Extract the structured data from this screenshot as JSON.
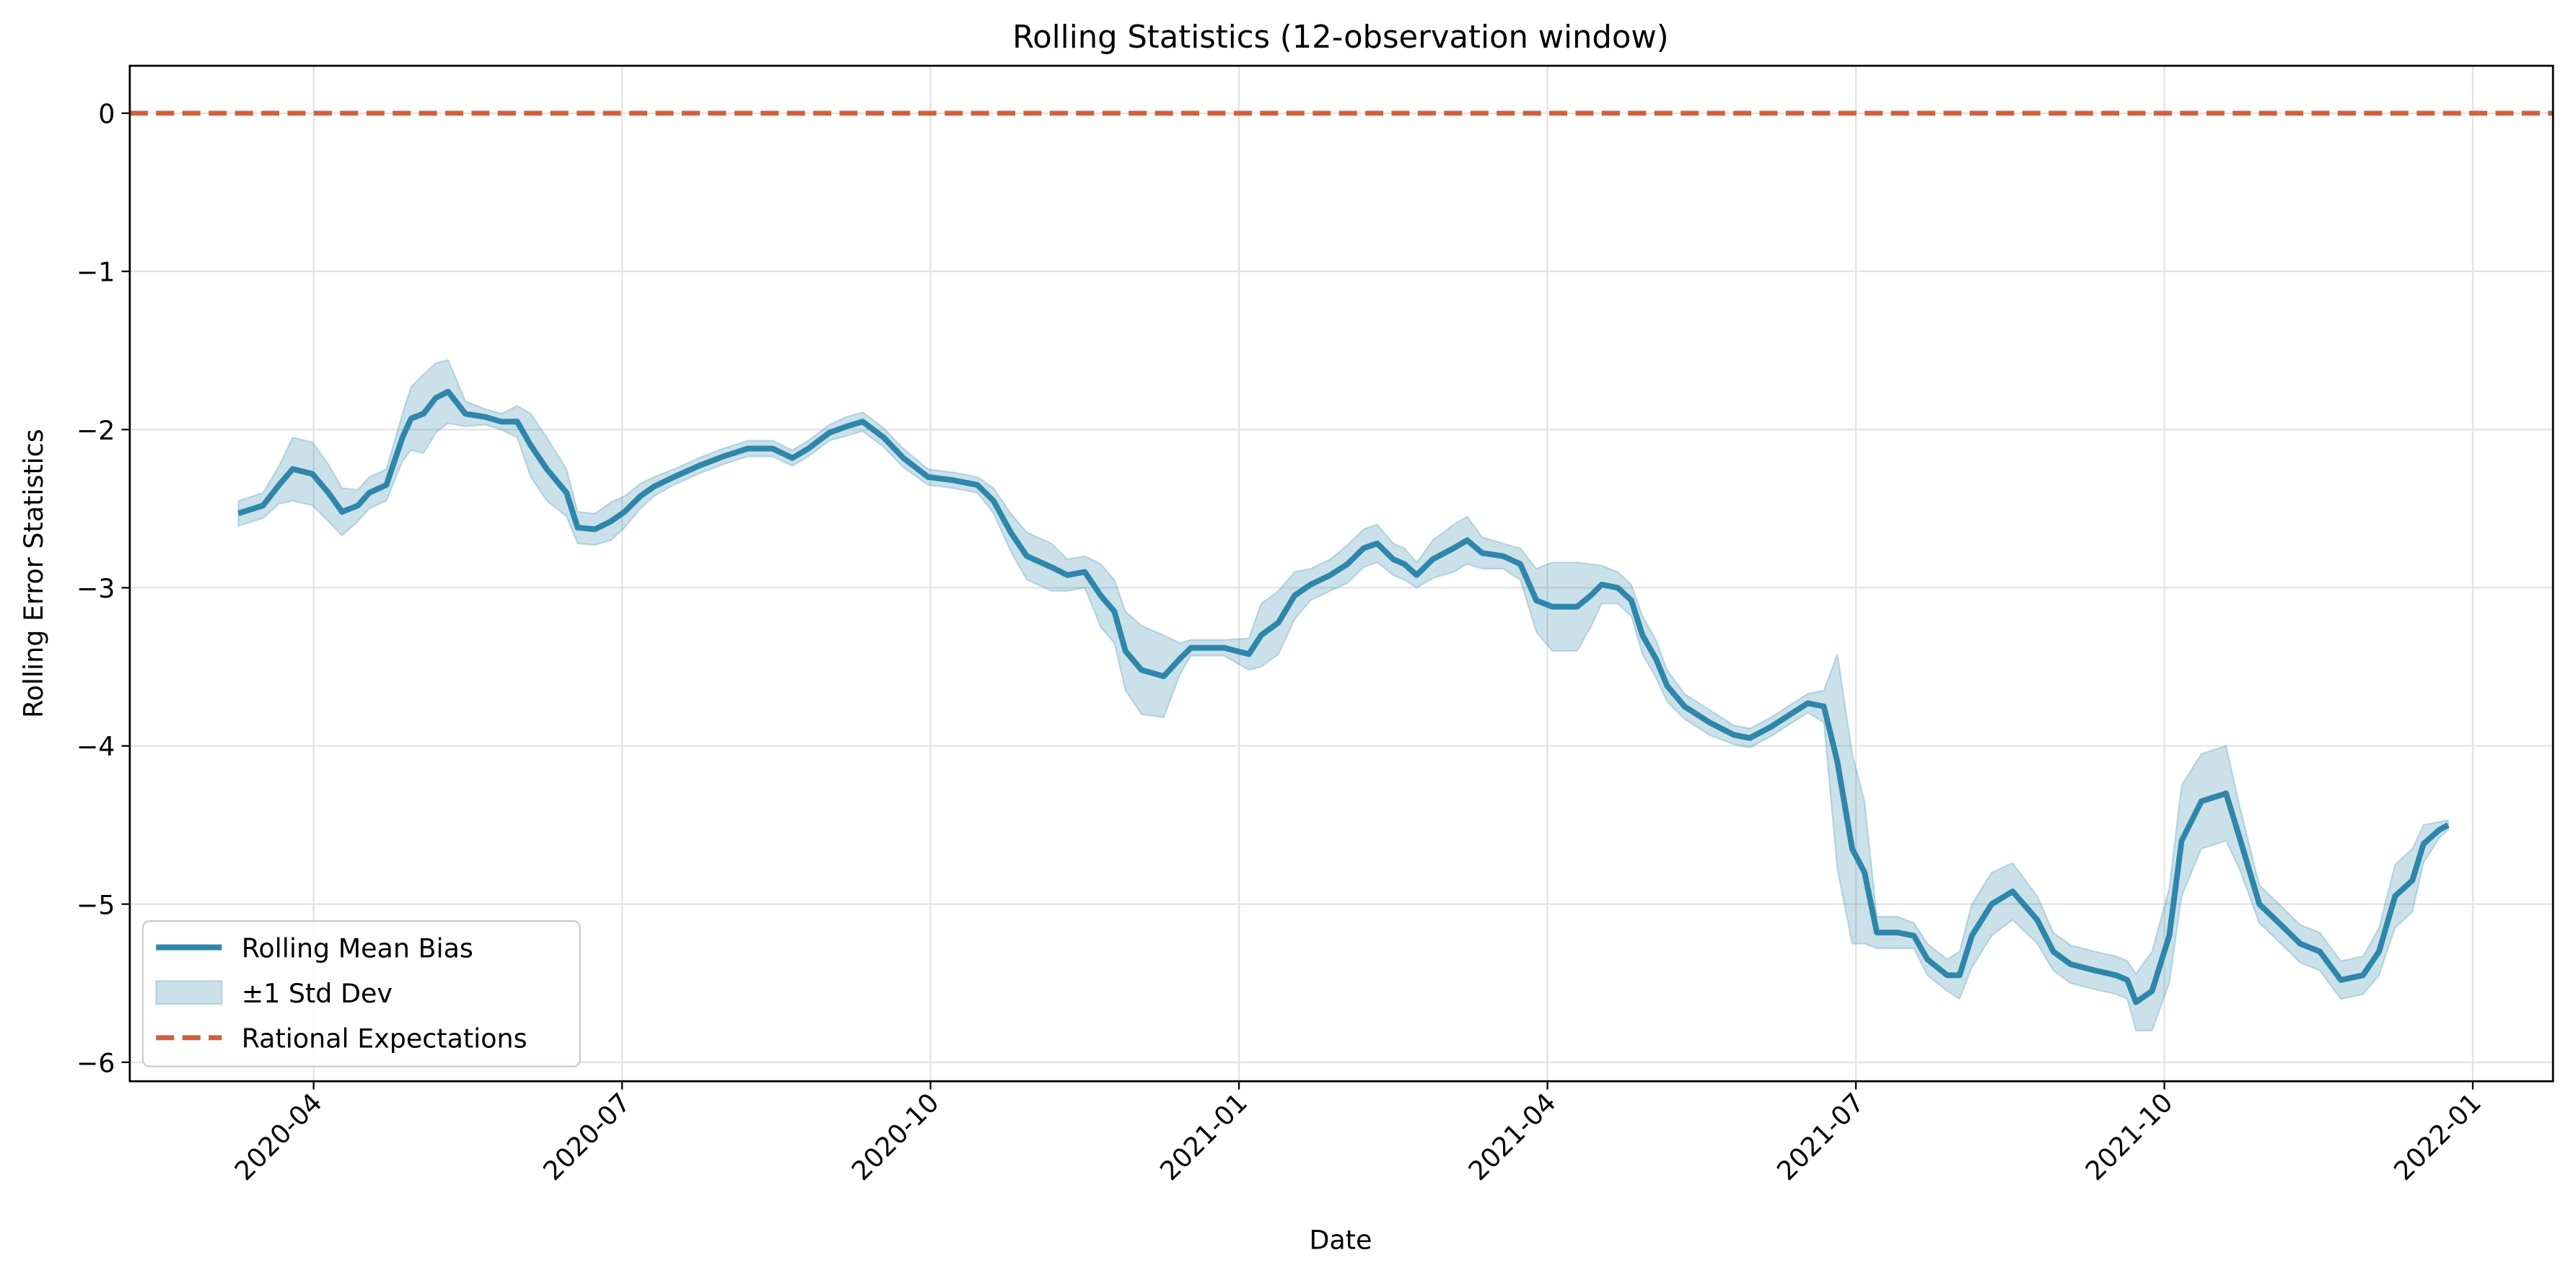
{
  "chart_data": {
    "type": "line",
    "title": "Rolling Statistics (12-observation window)",
    "xlabel": "Date",
    "ylabel": "Rolling Error Statistics",
    "xlim": [
      2020.101,
      2022.065
    ],
    "ylim": [
      -6.12,
      0.3
    ],
    "xticks": [
      {
        "value": 2020.25,
        "label": "2020-04"
      },
      {
        "value": 2020.5,
        "label": "2020-07"
      },
      {
        "value": 2020.75,
        "label": "2020-10"
      },
      {
        "value": 2021.0,
        "label": "2021-01"
      },
      {
        "value": 2021.25,
        "label": "2021-04"
      },
      {
        "value": 2021.5,
        "label": "2021-07"
      },
      {
        "value": 2021.75,
        "label": "2021-10"
      },
      {
        "value": 2022.0,
        "label": "2022-01"
      }
    ],
    "yticks": [
      0,
      {
        "value": -1,
        "label": "−1"
      },
      {
        "value": -2,
        "label": "−2"
      },
      {
        "value": -3,
        "label": "−3"
      },
      {
        "value": -4,
        "label": "−4"
      },
      {
        "value": -5,
        "label": "−5"
      },
      {
        "value": -6,
        "label": "−6"
      }
    ],
    "grid": true,
    "legend": "lower left",
    "x": [
      2020.189,
      2020.209,
      2020.222,
      2020.233,
      2020.249,
      2020.262,
      2020.273,
      2020.286,
      2020.295,
      2020.309,
      2020.322,
      2020.329,
      2020.339,
      2020.349,
      2020.359,
      2020.373,
      2020.389,
      2020.402,
      2020.415,
      2020.426,
      2020.439,
      2020.455,
      2020.464,
      2020.478,
      2020.491,
      2020.502,
      2020.515,
      2020.526,
      2020.542,
      2020.562,
      2020.582,
      2020.602,
      2020.622,
      2020.638,
      2020.651,
      2020.668,
      2020.682,
      2020.695,
      2020.712,
      2020.728,
      2020.748,
      2020.768,
      2020.788,
      2020.801,
      2020.815,
      2020.828,
      2020.848,
      2020.861,
      2020.875,
      2020.888,
      2020.899,
      2020.908,
      2020.921,
      2020.939,
      2020.952,
      2020.961,
      2020.988,
      2021.008,
      2021.018,
      2021.032,
      2021.045,
      2021.058,
      2021.074,
      2021.088,
      2021.101,
      2021.112,
      2021.125,
      2021.134,
      2021.144,
      2021.157,
      2021.174,
      2021.185,
      2021.197,
      2021.214,
      2021.228,
      2021.241,
      2021.254,
      2021.274,
      2021.285,
      2021.294,
      2021.307,
      2021.318,
      2021.327,
      2021.338,
      2021.347,
      2021.361,
      2021.381,
      2021.401,
      2021.414,
      2021.431,
      2021.447,
      2021.461,
      2021.474,
      2021.485,
      2021.497,
      2021.507,
      2021.517,
      2021.534,
      2021.547,
      2021.558,
      2021.574,
      2021.584,
      2021.594,
      2021.61,
      2021.627,
      2021.647,
      2021.66,
      2021.674,
      2021.694,
      2021.711,
      2021.72,
      2021.727,
      2021.74,
      2021.754,
      2021.764,
      2021.78,
      2021.8,
      2021.811,
      2021.827,
      2021.847,
      2021.86,
      2021.876,
      2021.893,
      2021.911,
      2021.924,
      2021.937,
      2021.951,
      2021.96,
      2021.973,
      2021.98
    ],
    "series": [
      {
        "name": "Rolling Mean Bias",
        "color": "#2e86ab",
        "style": "line",
        "values": [
          -2.53,
          -2.48,
          -2.35,
          -2.25,
          -2.28,
          -2.4,
          -2.52,
          -2.48,
          -2.4,
          -2.35,
          -2.05,
          -1.93,
          -1.9,
          -1.8,
          -1.76,
          -1.9,
          -1.92,
          -1.95,
          -1.95,
          -2.1,
          -2.25,
          -2.4,
          -2.62,
          -2.63,
          -2.58,
          -2.52,
          -2.42,
          -2.36,
          -2.3,
          -2.23,
          -2.17,
          -2.12,
          -2.12,
          -2.18,
          -2.12,
          -2.02,
          -1.98,
          -1.95,
          -2.05,
          -2.18,
          -2.3,
          -2.32,
          -2.35,
          -2.45,
          -2.65,
          -2.8,
          -2.87,
          -2.92,
          -2.9,
          -3.05,
          -3.15,
          -3.4,
          -3.52,
          -3.56,
          -3.45,
          -3.38,
          -3.38,
          -3.42,
          -3.3,
          -3.22,
          -3.05,
          -2.98,
          -2.92,
          -2.85,
          -2.75,
          -2.72,
          -2.82,
          -2.85,
          -2.92,
          -2.82,
          -2.75,
          -2.7,
          -2.78,
          -2.8,
          -2.85,
          -3.08,
          -3.12,
          -3.12,
          -3.05,
          -2.98,
          -3.0,
          -3.08,
          -3.3,
          -3.45,
          -3.62,
          -3.75,
          -3.85,
          -3.93,
          -3.95,
          -3.88,
          -3.8,
          -3.73,
          -3.75,
          -4.1,
          -4.65,
          -4.8,
          -5.18,
          -5.18,
          -5.2,
          -5.35,
          -5.45,
          -5.45,
          -5.2,
          -5.0,
          -4.92,
          -5.1,
          -5.3,
          -5.38,
          -5.42,
          -5.45,
          -5.48,
          -5.62,
          -5.55,
          -5.2,
          -4.6,
          -4.35,
          -4.3,
          -4.58,
          -5.0,
          -5.15,
          -5.25,
          -5.3,
          -5.48,
          -5.45,
          -5.3,
          -4.95,
          -4.85,
          -4.62,
          -4.53,
          -4.5
        ]
      },
      {
        "name": "±1 Std Dev",
        "color": "#2e86ab",
        "style": "band",
        "alpha": 0.25,
        "values": [
          0.08,
          0.08,
          0.12,
          0.2,
          0.2,
          0.18,
          0.15,
          0.1,
          0.1,
          0.1,
          0.15,
          0.2,
          0.25,
          0.22,
          0.2,
          0.08,
          0.05,
          0.05,
          0.1,
          0.2,
          0.2,
          0.15,
          0.1,
          0.1,
          0.12,
          0.1,
          0.08,
          0.06,
          0.05,
          0.05,
          0.05,
          0.05,
          0.05,
          0.05,
          0.05,
          0.05,
          0.06,
          0.06,
          0.06,
          0.06,
          0.05,
          0.05,
          0.05,
          0.08,
          0.12,
          0.15,
          0.15,
          0.1,
          0.1,
          0.2,
          0.2,
          0.25,
          0.28,
          0.26,
          0.1,
          0.05,
          0.05,
          0.1,
          0.2,
          0.2,
          0.15,
          0.1,
          0.1,
          0.12,
          0.12,
          0.12,
          0.1,
          0.1,
          0.08,
          0.12,
          0.15,
          0.15,
          0.1,
          0.08,
          0.1,
          0.2,
          0.28,
          0.28,
          0.2,
          0.12,
          0.1,
          0.1,
          0.12,
          0.12,
          0.1,
          0.08,
          0.08,
          0.06,
          0.06,
          0.06,
          0.06,
          0.06,
          0.1,
          0.68,
          0.6,
          0.45,
          0.1,
          0.1,
          0.08,
          0.1,
          0.1,
          0.15,
          0.2,
          0.2,
          0.18,
          0.15,
          0.12,
          0.12,
          0.12,
          0.12,
          0.12,
          0.18,
          0.25,
          0.3,
          0.35,
          0.3,
          0.3,
          0.2,
          0.12,
          0.12,
          0.12,
          0.12,
          0.12,
          0.12,
          0.15,
          0.2,
          0.2,
          0.12,
          0.05,
          0.03
        ]
      }
    ],
    "hlines": [
      {
        "name": "Rational Expectations",
        "value": 0,
        "color": "#d1603d",
        "dash": true
      }
    ]
  }
}
